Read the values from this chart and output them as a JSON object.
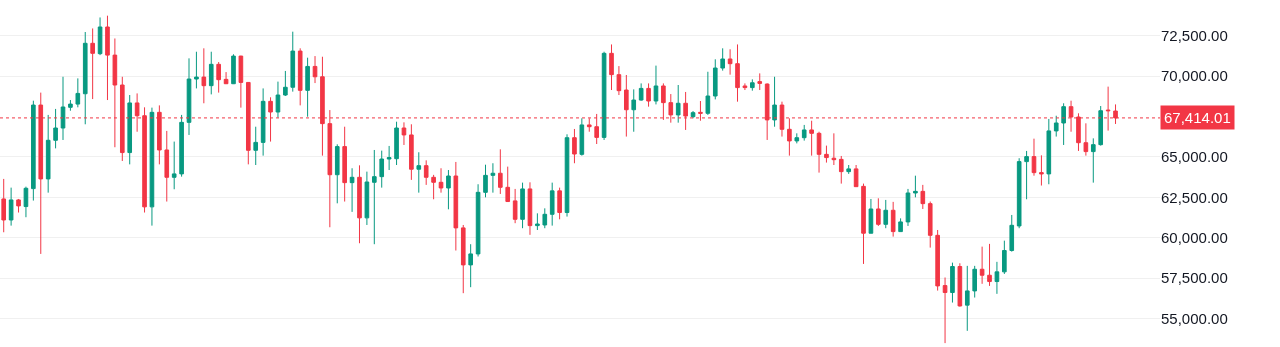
{
  "chart_data": {
    "type": "candlestick",
    "categories": [
      null,
      null,
      null,
      null,
      null,
      null,
      null,
      null,
      null,
      null,
      null,
      null,
      null,
      null,
      null,
      null,
      null,
      null,
      null,
      null,
      null,
      null,
      null,
      null,
      null,
      null,
      null,
      null,
      null,
      null,
      null,
      null,
      null,
      null,
      null,
      null,
      null,
      null,
      null,
      null,
      null,
      null,
      null,
      null,
      null,
      null,
      null,
      null,
      null,
      null,
      null,
      null,
      null,
      null,
      null,
      null,
      null,
      null,
      null,
      null,
      null,
      null,
      null,
      null,
      null,
      null,
      null,
      null,
      null,
      null,
      null,
      null,
      null,
      null,
      null,
      null,
      null,
      null,
      null,
      null,
      null,
      null,
      null,
      null,
      null,
      null,
      null,
      null,
      null,
      null,
      null,
      null,
      null,
      null,
      null,
      null,
      null,
      null,
      null,
      null,
      null,
      null,
      null,
      null,
      null,
      null,
      null,
      null,
      null,
      null,
      null,
      null,
      null,
      null,
      null,
      null,
      null,
      null,
      null,
      null,
      null,
      null,
      null,
      null,
      null,
      null,
      null,
      null,
      null,
      null,
      null,
      null,
      null,
      null,
      null,
      null,
      null,
      null,
      null,
      null,
      null,
      null,
      null,
      null,
      null,
      null,
      null,
      null,
      null,
      null,
      null
    ],
    "ohlc": [
      [
        62400,
        63640,
        60340,
        61100
      ],
      [
        61100,
        63100,
        60750,
        62340
      ],
      [
        62340,
        62400,
        61560,
        61970
      ],
      [
        61930,
        63160,
        61270,
        63060
      ],
      [
        63040,
        68480,
        62300,
        68210
      ],
      [
        68210,
        68980,
        59000,
        63640
      ],
      [
        63640,
        67600,
        62790,
        66030
      ],
      [
        66030,
        67970,
        65530,
        66790
      ],
      [
        66790,
        69960,
        66050,
        68090
      ],
      [
        68070,
        68520,
        67860,
        68270
      ],
      [
        68270,
        69860,
        68070,
        68930
      ],
      [
        68910,
        72730,
        67020,
        72030
      ],
      [
        72030,
        72950,
        68580,
        71410
      ],
      [
        71390,
        73630,
        71300,
        73040
      ],
      [
        73040,
        73740,
        68520,
        71300
      ],
      [
        71300,
        72330,
        65600,
        69450
      ],
      [
        69450,
        69960,
        64750,
        65270
      ],
      [
        65270,
        68830,
        64540,
        68340
      ],
      [
        68340,
        68930,
        66560,
        67550
      ],
      [
        67550,
        68070,
        61560,
        61910
      ],
      [
        61910,
        68050,
        60750,
        67760
      ],
      [
        67760,
        68190,
        64540,
        65430
      ],
      [
        65430,
        66610,
        62240,
        63740
      ],
      [
        63740,
        65950,
        63000,
        63950
      ],
      [
        63950,
        67600,
        63780,
        67140
      ],
      [
        67140,
        71100,
        66360,
        69820
      ],
      [
        69820,
        71510,
        69240,
        69940
      ],
      [
        69940,
        71720,
        68320,
        69410
      ],
      [
        69410,
        71510,
        68870,
        70730
      ],
      [
        70730,
        70870,
        68980,
        69780
      ],
      [
        69800,
        70250,
        69510,
        69530
      ],
      [
        69530,
        71350,
        69510,
        71240
      ],
      [
        71240,
        71260,
        68050,
        69610
      ],
      [
        69610,
        69630,
        64540,
        65410
      ],
      [
        65410,
        66870,
        64500,
        65900
      ],
      [
        65900,
        69240,
        65080,
        68440
      ],
      [
        68440,
        68690,
        65950,
        67780
      ],
      [
        67780,
        69660,
        67430,
        68830
      ],
      [
        68830,
        70320,
        68770,
        69310
      ],
      [
        69310,
        72750,
        69040,
        71550
      ],
      [
        71550,
        71720,
        68190,
        69120
      ],
      [
        69120,
        71140,
        67490,
        70600
      ],
      [
        70600,
        71240,
        69570,
        69960
      ],
      [
        69960,
        71200,
        65080,
        67060
      ],
      [
        67060,
        67900,
        60650,
        63900
      ],
      [
        63900,
        65780,
        62130,
        65640
      ],
      [
        65640,
        66870,
        62240,
        63410
      ],
      [
        63410,
        64300,
        61600,
        63740
      ],
      [
        63740,
        64480,
        59660,
        61230
      ],
      [
        61230,
        64090,
        60790,
        63450
      ],
      [
        63430,
        65430,
        59600,
        63780
      ],
      [
        63780,
        65390,
        63100,
        64870
      ],
      [
        64870,
        65680,
        64190,
        64960
      ],
      [
        64890,
        67180,
        64500,
        66790
      ],
      [
        66790,
        67140,
        65740,
        66360
      ],
      [
        66360,
        67020,
        63580,
        64240
      ],
      [
        64240,
        65290,
        62790,
        64460
      ],
      [
        64460,
        64790,
        63270,
        63740
      ],
      [
        63740,
        63890,
        62380,
        63430
      ],
      [
        63430,
        64300,
        62790,
        63080
      ],
      [
        63080,
        64190,
        61760,
        63820
      ],
      [
        63820,
        64690,
        59210,
        60610
      ],
      [
        60610,
        60790,
        56570,
        58320
      ],
      [
        58320,
        59600,
        56940,
        59000
      ],
      [
        59000,
        63310,
        58840,
        62810
      ],
      [
        62810,
        64520,
        62500,
        63860
      ],
      [
        63860,
        64610,
        62790,
        63990
      ],
      [
        63990,
        65470,
        62710,
        63120
      ],
      [
        63120,
        64400,
        62220,
        62240
      ],
      [
        62280,
        63020,
        60900,
        61140
      ],
      [
        61140,
        63410,
        60590,
        63020
      ],
      [
        63020,
        63430,
        60180,
        60750
      ],
      [
        60750,
        61510,
        60480,
        60850
      ],
      [
        60790,
        61820,
        60590,
        61450
      ],
      [
        61450,
        63410,
        60750,
        62900
      ],
      [
        62900,
        63100,
        61140,
        61560
      ],
      [
        61560,
        66400,
        61310,
        66190
      ],
      [
        66190,
        66730,
        64610,
        65180
      ],
      [
        65160,
        67390,
        65080,
        66980
      ],
      [
        66980,
        67390,
        66560,
        66870
      ],
      [
        66870,
        67660,
        65800,
        66210
      ],
      [
        66210,
        71510,
        66050,
        71410
      ],
      [
        71410,
        71960,
        69140,
        70090
      ],
      [
        70090,
        70620,
        68830,
        69100
      ],
      [
        69140,
        70070,
        66260,
        67920
      ],
      [
        67920,
        69180,
        66560,
        68520
      ],
      [
        68520,
        69550,
        68480,
        69240
      ],
      [
        69240,
        69550,
        68110,
        68460
      ],
      [
        68460,
        70650,
        68250,
        69390
      ],
      [
        69390,
        69550,
        67290,
        68360
      ],
      [
        68360,
        68890,
        67120,
        67600
      ],
      [
        67600,
        69450,
        67120,
        68320
      ],
      [
        68320,
        69020,
        66670,
        67530
      ],
      [
        67490,
        67840,
        67390,
        67740
      ],
      [
        67760,
        68460,
        67240,
        67700
      ],
      [
        67700,
        70270,
        67600,
        68770
      ],
      [
        68770,
        71040,
        68560,
        70500
      ],
      [
        70500,
        71720,
        70340,
        71060
      ],
      [
        71060,
        71660,
        70090,
        70770
      ],
      [
        70770,
        71960,
        68420,
        69290
      ],
      [
        69390,
        69550,
        69140,
        69290
      ],
      [
        69290,
        69800,
        69100,
        69590
      ],
      [
        69660,
        70170,
        69140,
        69550
      ],
      [
        69510,
        69550,
        66050,
        67290
      ],
      [
        67290,
        69960,
        66870,
        68210
      ],
      [
        68210,
        68420,
        66260,
        66710
      ],
      [
        66710,
        67390,
        65080,
        65990
      ],
      [
        65990,
        66460,
        65840,
        66190
      ],
      [
        66190,
        66980,
        66010,
        66670
      ],
      [
        66670,
        67240,
        65080,
        66460
      ],
      [
        66460,
        66560,
        64030,
        65160
      ],
      [
        65160,
        65700,
        64650,
        64960
      ],
      [
        64920,
        66460,
        64500,
        64830
      ],
      [
        64850,
        65060,
        63350,
        64090
      ],
      [
        64090,
        64500,
        63950,
        64260
      ],
      [
        64260,
        64500,
        63160,
        63160
      ],
      [
        63180,
        63350,
        58380,
        60280
      ],
      [
        60280,
        62400,
        60280,
        61780
      ],
      [
        61780,
        62440,
        60730,
        60830
      ],
      [
        60830,
        62340,
        60590,
        61700
      ],
      [
        61700,
        62220,
        60070,
        60380
      ],
      [
        60380,
        61200,
        60380,
        60980
      ],
      [
        60980,
        63020,
        60730,
        62770
      ],
      [
        62770,
        63840,
        62500,
        62870
      ],
      [
        62870,
        63270,
        61780,
        62110
      ],
      [
        62110,
        62240,
        59390,
        60150
      ],
      [
        60150,
        60480,
        56730,
        57020
      ],
      [
        57040,
        57540,
        53480,
        56610
      ],
      [
        56610,
        58460,
        55990,
        58220
      ],
      [
        58220,
        58420,
        55740,
        55780
      ],
      [
        55830,
        58260,
        54240,
        56710
      ],
      [
        56710,
        58260,
        56300,
        58050
      ],
      [
        58050,
        59450,
        57150,
        57680
      ],
      [
        57680,
        59620,
        57020,
        57290
      ],
      [
        57290,
        58510,
        56530,
        57890
      ],
      [
        57890,
        59820,
        57760,
        59210
      ],
      [
        59210,
        61410,
        59140,
        60770
      ],
      [
        60730,
        64920,
        60590,
        64710
      ],
      [
        64710,
        65370,
        62380,
        65020
      ],
      [
        65020,
        66130,
        63840,
        64030
      ],
      [
        64030,
        65100,
        63230,
        63950
      ],
      [
        63950,
        67350,
        63310,
        66610
      ],
      [
        66610,
        67550,
        66260,
        67100
      ],
      [
        67100,
        68320,
        65740,
        68110
      ],
      [
        68110,
        68480,
        66560,
        67470
      ],
      [
        67470,
        67700,
        65370,
        65880
      ],
      [
        65880,
        67080,
        65080,
        65330
      ],
      [
        65330,
        66150,
        63410,
        65760
      ],
      [
        65760,
        68150,
        65700,
        67860
      ],
      [
        67900,
        69350,
        66630,
        67860
      ],
      [
        67840,
        68250,
        67040,
        67414.01
      ]
    ],
    "colors": [
      "#f23645",
      "#089981",
      "#f23645",
      "#089981",
      "#089981",
      "#f23645",
      "#089981",
      "#089981",
      "#089981",
      "#089981",
      "#089981",
      "#089981",
      "#f23645",
      "#089981",
      "#f23645",
      "#f23645",
      "#f23645",
      "#089981",
      "#f23645",
      "#f23645",
      "#089981",
      "#f23645",
      "#f23645",
      "#089981",
      "#089981",
      "#089981",
      "#089981",
      "#f23645",
      "#089981",
      "#f23645",
      "#f23645",
      "#089981",
      "#f23645",
      "#f23645",
      "#089981",
      "#089981",
      "#f23645",
      "#089981",
      "#089981",
      "#089981",
      "#f23645",
      "#089981",
      "#f23645",
      "#f23645",
      "#f23645",
      "#089981",
      "#f23645",
      "#089981",
      "#f23645",
      "#089981",
      "#089981",
      "#089981",
      "#089981",
      "#089981",
      "#f23645",
      "#f23645",
      "#089981",
      "#f23645",
      "#f23645",
      "#f23645",
      "#089981",
      "#f23645",
      "#f23645",
      "#089981",
      "#089981",
      "#089981",
      "#089981",
      "#f23645",
      "#f23645",
      "#f23645",
      "#089981",
      "#f23645",
      "#089981",
      "#089981",
      "#089981",
      "#f23645",
      "#089981",
      "#f23645",
      "#089981",
      "#f23645",
      "#f23645",
      "#089981",
      "#f23645",
      "#f23645",
      "#f23645",
      "#089981",
      "#089981",
      "#f23645",
      "#089981",
      "#f23645",
      "#f23645",
      "#089981",
      "#f23645",
      "#089981",
      "#f23645",
      "#089981",
      "#089981",
      "#089981",
      "#f23645",
      "#f23645",
      "#f23645",
      "#089981",
      "#f23645",
      "#f23645",
      "#089981",
      "#f23645",
      "#f23645",
      "#089981",
      "#089981",
      "#f23645",
      "#f23645",
      "#f23645",
      "#f23645",
      "#f23645",
      "#089981",
      "#f23645",
      "#f23645",
      "#089981",
      "#f23645",
      "#089981",
      "#f23645",
      "#089981",
      "#089981",
      "#089981",
      "#f23645",
      "#f23645",
      "#f23645",
      "#f23645",
      "#089981",
      "#f23645",
      "#089981",
      "#089981",
      "#f23645",
      "#f23645",
      "#089981",
      "#089981",
      "#089981",
      "#089981",
      "#089981",
      "#f23645",
      "#f23645",
      "#089981",
      "#089981",
      "#089981",
      "#f23645",
      "#f23645",
      "#f23645",
      "#089981",
      "#089981",
      "#f23645",
      "#f23645"
    ],
    "ylim": [
      53240,
      74710
    ],
    "yticks": [
      {
        "value": 55000,
        "label": "55,000.00"
      },
      {
        "value": 57500,
        "label": "57,500.00"
      },
      {
        "value": 60000,
        "label": "60,000.00"
      },
      {
        "value": 62500,
        "label": "62,500.00"
      },
      {
        "value": 65000,
        "label": "65,000.00"
      },
      {
        "value": 70000,
        "label": "70,000.00"
      },
      {
        "value": 72500,
        "label": "72,500.00"
      }
    ],
    "ref_lines": [
      {
        "axis": "y",
        "value": 67414.01,
        "label": "67,414.01",
        "color": "#f23645",
        "line_style": "dotted"
      }
    ],
    "grid": "y",
    "tick_labels": "y"
  }
}
